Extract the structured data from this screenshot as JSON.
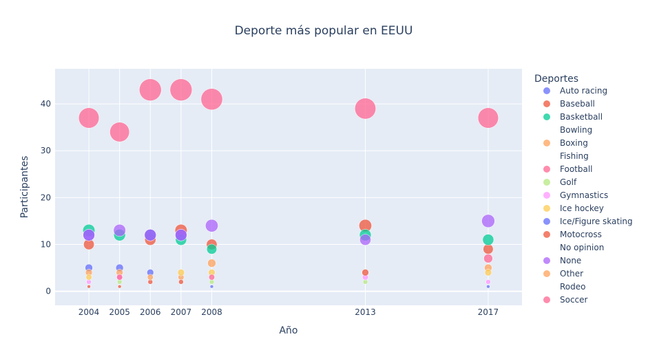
{
  "chart_data": {
    "type": "scatter",
    "title": "Deporte más popular en EEUU",
    "xlabel": "Año",
    "ylabel": "Participantes",
    "x_ticks": [
      2004,
      2005,
      2006,
      2007,
      2008,
      2013,
      2017
    ],
    "y_ticks": [
      0,
      10,
      20,
      30,
      40
    ],
    "xlim": [
      2002.9,
      2018.1
    ],
    "ylim": [
      -3,
      47.5
    ],
    "legend_title": "Deportes",
    "legend_position": "right",
    "series": [
      {
        "name": "Auto racing",
        "color": "#636efa",
        "points": [
          [
            2004,
            5
          ],
          [
            2005,
            5
          ],
          [
            2006,
            4
          ],
          [
            2008,
            1
          ],
          [
            2017,
            1
          ]
        ]
      },
      {
        "name": "Baseball",
        "color": "#ef553b",
        "points": [
          [
            2004,
            10
          ],
          [
            2006,
            11
          ],
          [
            2007,
            13
          ],
          [
            2008,
            10
          ],
          [
            2013,
            14
          ],
          [
            2017,
            9
          ]
        ]
      },
      {
        "name": "Basketball",
        "color": "#00cc96",
        "points": [
          [
            2004,
            13
          ],
          [
            2005,
            12
          ],
          [
            2006,
            12
          ],
          [
            2007,
            11
          ],
          [
            2008,
            9
          ],
          [
            2013,
            12
          ],
          [
            2017,
            11
          ]
        ]
      },
      {
        "name": "Bowling",
        "color": "#ab63fa",
        "points": []
      },
      {
        "name": "Boxing",
        "color": "#ffa15a",
        "points": [
          [
            2004,
            4
          ],
          [
            2005,
            4
          ],
          [
            2007,
            3
          ],
          [
            2008,
            6
          ],
          [
            2017,
            5
          ]
        ]
      },
      {
        "name": "Fishing",
        "color": "#19d3f3",
        "points": []
      },
      {
        "name": "Football",
        "color": "#ff6692",
        "points": [
          [
            2004,
            37
          ],
          [
            2005,
            34
          ],
          [
            2006,
            43
          ],
          [
            2007,
            43
          ],
          [
            2008,
            41
          ],
          [
            2013,
            39
          ],
          [
            2017,
            37
          ]
        ]
      },
      {
        "name": "Golf",
        "color": "#b6e880",
        "points": [
          [
            2005,
            2
          ],
          [
            2008,
            2
          ],
          [
            2013,
            2
          ]
        ]
      },
      {
        "name": "Gymnastics",
        "color": "#ff97ff",
        "points": [
          [
            2004,
            2
          ],
          [
            2005,
            3
          ],
          [
            2013,
            3
          ],
          [
            2017,
            2
          ]
        ]
      },
      {
        "name": "Ice hockey",
        "color": "#fecb52",
        "points": [
          [
            2004,
            3
          ],
          [
            2007,
            4
          ],
          [
            2008,
            4
          ],
          [
            2017,
            4
          ]
        ]
      },
      {
        "name": "Ice/Figure skating",
        "color": "#636efa",
        "points": [
          [
            2004,
            12
          ],
          [
            2006,
            12
          ],
          [
            2007,
            12
          ]
        ]
      },
      {
        "name": "Motocross",
        "color": "#ef553b",
        "points": [
          [
            2004,
            1
          ],
          [
            2005,
            1
          ],
          [
            2006,
            2
          ],
          [
            2007,
            2
          ],
          [
            2013,
            4
          ]
        ]
      },
      {
        "name": "No opinion",
        "color": "#00cc96",
        "points": []
      },
      {
        "name": "None",
        "color": "#ab63fa",
        "points": [
          [
            2004,
            12
          ],
          [
            2005,
            13
          ],
          [
            2006,
            12
          ],
          [
            2007,
            12
          ],
          [
            2008,
            14
          ],
          [
            2013,
            11
          ],
          [
            2017,
            15
          ]
        ]
      },
      {
        "name": "Other",
        "color": "#ffa15a",
        "points": [
          [
            2006,
            3
          ]
        ]
      },
      {
        "name": "Rodeo",
        "color": "#19d3f3",
        "points": []
      },
      {
        "name": "Soccer",
        "color": "#ff6692",
        "points": [
          [
            2005,
            3
          ],
          [
            2008,
            3
          ],
          [
            2017,
            7
          ]
        ]
      }
    ]
  }
}
